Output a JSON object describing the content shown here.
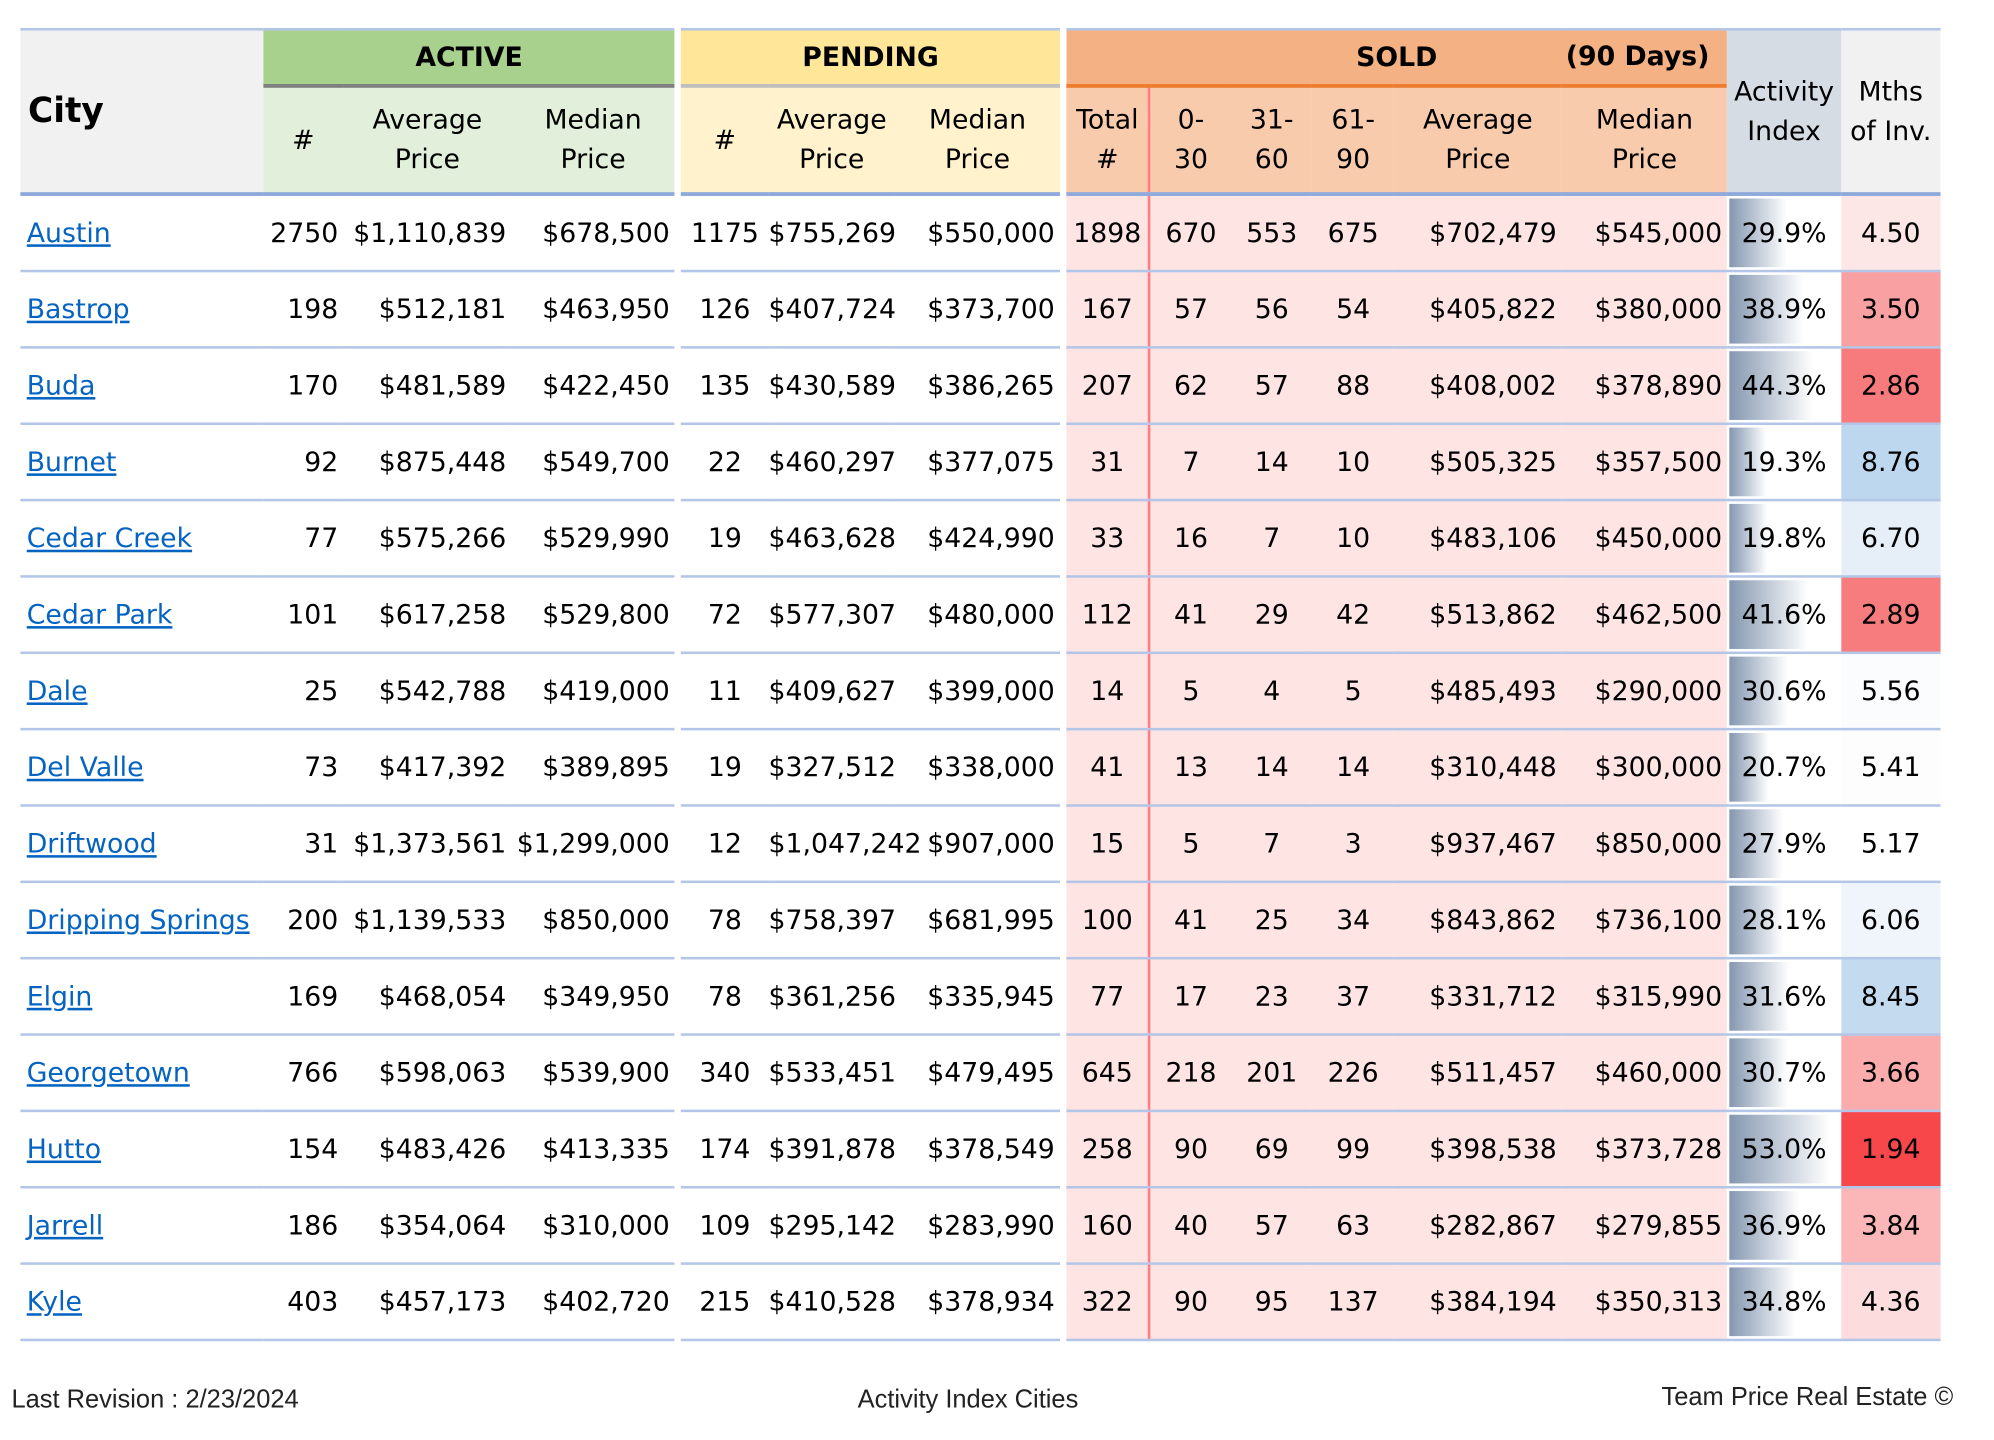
{
  "header": {
    "city": "City",
    "active": "ACTIVE",
    "pending": "PENDING",
    "sold": "SOLD",
    "sold_period": "(90 Days)",
    "count": "#",
    "average_price": [
      "Average",
      "Price"
    ],
    "median_price": [
      "Median",
      "Price"
    ],
    "total": [
      "Total",
      "#"
    ],
    "d0_30": [
      "0-",
      "30"
    ],
    "d31_60": [
      "31-",
      "60"
    ],
    "d61_90": [
      "61-",
      "90"
    ],
    "activity_index": [
      "Activity",
      "Index"
    ],
    "months_inventory": [
      "Mths",
      "of Inv."
    ]
  },
  "colors": {
    "active": "#a9d18e",
    "pending": "#ffe699",
    "sold": "#f4b183",
    "link": "#0563c1"
  },
  "rows": [
    {
      "city": "Austin",
      "active_n": "2750",
      "active_avg": "$1,110,839",
      "active_med": "$678,500",
      "pend_n": "1175",
      "pend_avg": "$755,269",
      "pend_med": "$550,000",
      "sold_total": "1898",
      "d0_30": "670",
      "d31_60": "553",
      "d61_90": "675",
      "sold_avg": "$702,479",
      "sold_med": "$545,000",
      "activity": "29.9%",
      "activity_value": 29.9,
      "mths": "4.50",
      "mths_color": "#fde6e6"
    },
    {
      "city": "Bastrop",
      "active_n": "198",
      "active_avg": "$512,181",
      "active_med": "$463,950",
      "pend_n": "126",
      "pend_avg": "$407,724",
      "pend_med": "$373,700",
      "sold_total": "167",
      "d0_30": "57",
      "d31_60": "56",
      "d61_90": "54",
      "sold_avg": "$405,822",
      "sold_med": "$380,000",
      "activity": "38.9%",
      "activity_value": 38.9,
      "mths": "3.50",
      "mths_color": "#f9a1a2"
    },
    {
      "city": "Buda",
      "active_n": "170",
      "active_avg": "$481,589",
      "active_med": "$422,450",
      "pend_n": "135",
      "pend_avg": "$430,589",
      "pend_med": "$386,265",
      "sold_total": "207",
      "d0_30": "62",
      "d31_60": "57",
      "d61_90": "88",
      "sold_avg": "$408,002",
      "sold_med": "$378,890",
      "activity": "44.3%",
      "activity_value": 44.3,
      "mths": "2.86",
      "mths_color": "#f77a7c"
    },
    {
      "city": "Burnet",
      "active_n": "92",
      "active_avg": "$875,448",
      "active_med": "$549,700",
      "pend_n": "22",
      "pend_avg": "$460,297",
      "pend_med": "$377,075",
      "sold_total": "31",
      "d0_30": "7",
      "d31_60": "14",
      "d61_90": "10",
      "sold_avg": "$505,325",
      "sold_med": "$357,500",
      "activity": "19.3%",
      "activity_value": 19.3,
      "mths": "8.76",
      "mths_color": "#bdd7ee"
    },
    {
      "city": "Cedar Creek",
      "active_n": "77",
      "active_avg": "$575,266",
      "active_med": "$529,990",
      "pend_n": "19",
      "pend_avg": "$463,628",
      "pend_med": "$424,990",
      "sold_total": "33",
      "d0_30": "16",
      "d31_60": "7",
      "d61_90": "10",
      "sold_avg": "$483,106",
      "sold_med": "$450,000",
      "activity": "19.8%",
      "activity_value": 19.8,
      "mths": "6.70",
      "mths_color": "#e6eff8"
    },
    {
      "city": "Cedar Park",
      "active_n": "101",
      "active_avg": "$617,258",
      "active_med": "$529,800",
      "pend_n": "72",
      "pend_avg": "$577,307",
      "pend_med": "$480,000",
      "sold_total": "112",
      "d0_30": "41",
      "d31_60": "29",
      "d61_90": "42",
      "sold_avg": "$513,862",
      "sold_med": "$462,500",
      "activity": "41.6%",
      "activity_value": 41.6,
      "mths": "2.89",
      "mths_color": "#f77c7e"
    },
    {
      "city": "Dale",
      "active_n": "25",
      "active_avg": "$542,788",
      "active_med": "$419,000",
      "pend_n": "11",
      "pend_avg": "$409,627",
      "pend_med": "$399,000",
      "sold_total": "14",
      "d0_30": "5",
      "d31_60": "4",
      "d61_90": "5",
      "sold_avg": "$485,493",
      "sold_med": "$290,000",
      "activity": "30.6%",
      "activity_value": 30.6,
      "mths": "5.56",
      "mths_color": "#fbfcfe"
    },
    {
      "city": "Del Valle",
      "active_n": "73",
      "active_avg": "$417,392",
      "active_med": "$389,895",
      "pend_n": "19",
      "pend_avg": "$327,512",
      "pend_med": "$338,000",
      "sold_total": "41",
      "d0_30": "13",
      "d31_60": "14",
      "d61_90": "14",
      "sold_avg": "$310,448",
      "sold_med": "$300,000",
      "activity": "20.7%",
      "activity_value": 20.7,
      "mths": "5.41",
      "mths_color": "#fdfdfe"
    },
    {
      "city": "Driftwood",
      "active_n": "31",
      "active_avg": "$1,373,561",
      "active_med": "$1,299,000",
      "pend_n": "12",
      "pend_avg": "$1,047,242",
      "pend_med": "$907,000",
      "sold_total": "15",
      "d0_30": "5",
      "d31_60": "7",
      "d61_90": "3",
      "sold_avg": "$937,467",
      "sold_med": "$850,000",
      "activity": "27.9%",
      "activity_value": 27.9,
      "mths": "5.17",
      "mths_color": "#ffffff"
    },
    {
      "city": "Dripping Springs",
      "active_n": "200",
      "active_avg": "$1,139,533",
      "active_med": "$850,000",
      "pend_n": "78",
      "pend_avg": "$758,397",
      "pend_med": "$681,995",
      "sold_total": "100",
      "d0_30": "41",
      "d31_60": "25",
      "d61_90": "34",
      "sold_avg": "$843,862",
      "sold_med": "$736,100",
      "activity": "28.1%",
      "activity_value": 28.1,
      "mths": "6.06",
      "mths_color": "#f0f5fb"
    },
    {
      "city": "Elgin",
      "active_n": "169",
      "active_avg": "$468,054",
      "active_med": "$349,950",
      "pend_n": "78",
      "pend_avg": "$361,256",
      "pend_med": "$335,945",
      "sold_total": "77",
      "d0_30": "17",
      "d31_60": "23",
      "d61_90": "37",
      "sold_avg": "$331,712",
      "sold_med": "$315,990",
      "activity": "31.6%",
      "activity_value": 31.6,
      "mths": "8.45",
      "mths_color": "#c4dbef"
    },
    {
      "city": "Georgetown",
      "active_n": "766",
      "active_avg": "$598,063",
      "active_med": "$539,900",
      "pend_n": "340",
      "pend_avg": "$533,451",
      "pend_med": "$479,495",
      "sold_total": "645",
      "d0_30": "218",
      "d31_60": "201",
      "d61_90": "226",
      "sold_avg": "$511,457",
      "sold_med": "$460,000",
      "activity": "30.7%",
      "activity_value": 30.7,
      "mths": "3.66",
      "mths_color": "#faacad"
    },
    {
      "city": "Hutto",
      "active_n": "154",
      "active_avg": "$483,426",
      "active_med": "$413,335",
      "pend_n": "174",
      "pend_avg": "$391,878",
      "pend_med": "$378,549",
      "sold_total": "258",
      "d0_30": "90",
      "d31_60": "69",
      "d61_90": "99",
      "sold_avg": "$398,538",
      "sold_med": "$373,728",
      "activity": "53.0%",
      "activity_value": 53.0,
      "mths": "1.94",
      "mths_color": "#f8474a"
    },
    {
      "city": "Jarrell",
      "active_n": "186",
      "active_avg": "$354,064",
      "active_med": "$310,000",
      "pend_n": "109",
      "pend_avg": "$295,142",
      "pend_med": "$283,990",
      "sold_total": "160",
      "d0_30": "40",
      "d31_60": "57",
      "d61_90": "63",
      "sold_avg": "$282,867",
      "sold_med": "$279,855",
      "activity": "36.9%",
      "activity_value": 36.9,
      "mths": "3.84",
      "mths_color": "#fbb6b7"
    },
    {
      "city": "Kyle",
      "active_n": "403",
      "active_avg": "$457,173",
      "active_med": "$402,720",
      "pend_n": "215",
      "pend_avg": "$410,528",
      "pend_med": "$378,934",
      "sold_total": "322",
      "d0_30": "90",
      "d31_60": "95",
      "d61_90": "137",
      "sold_avg": "$384,194",
      "sold_med": "$350,313",
      "activity": "34.8%",
      "activity_value": 34.8,
      "mths": "4.36",
      "mths_color": "#fcdcdc"
    }
  ],
  "footer": {
    "revision": "Last Revision : 2/23/2024",
    "title": "Activity Index Cities",
    "credit": "Team Price Real Estate ©"
  }
}
